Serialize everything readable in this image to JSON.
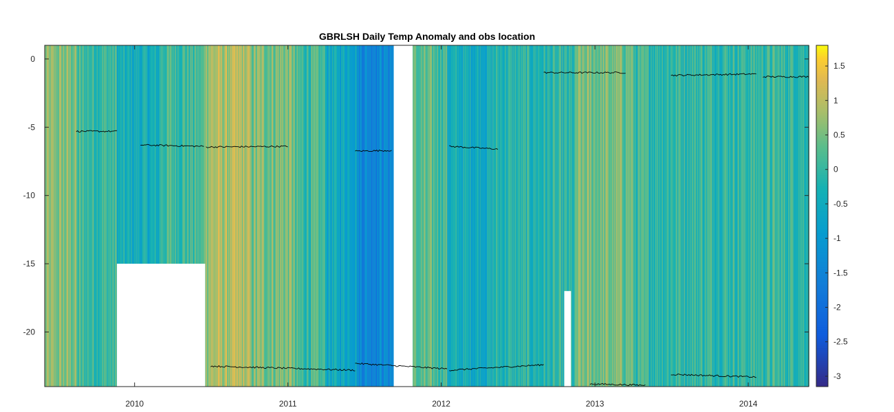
{
  "chart_data": {
    "type": "heatmap",
    "title": "GBRLSH Daily Temp Anomaly and obs location",
    "xlabel": "",
    "ylabel": "",
    "x_range": [
      "2009-06-01",
      "2014-05-25"
    ],
    "ylim": [
      -24,
      1
    ],
    "x_ticks": [
      "2010",
      "2011",
      "2012",
      "2013",
      "2014"
    ],
    "y_ticks": [
      0,
      -5,
      -10,
      -15,
      -20
    ],
    "colorbar": {
      "colormap": "parula",
      "clim": [
        -3.15,
        1.8
      ],
      "ticks": [
        1.5,
        1,
        0.5,
        0,
        -0.5,
        -1,
        -1.5,
        -2,
        -2.5,
        -3
      ],
      "tick_labels": [
        "1.5",
        "1",
        "0.5",
        "0",
        "-0.5",
        "-1",
        "-1.5",
        "-2",
        "-2.5",
        "-3"
      ]
    },
    "grid": false,
    "anomaly_periods": [
      {
        "start": "2009-06-01",
        "end": "2009-08-15",
        "anomaly": 0.55
      },
      {
        "start": "2009-08-15",
        "end": "2009-11-20",
        "anomaly": 0.05
      },
      {
        "start": "2009-11-20",
        "end": "2010-03-01",
        "anomaly": -0.45
      },
      {
        "start": "2010-03-01",
        "end": "2010-06-15",
        "anomaly": 0.1
      },
      {
        "start": "2010-06-15",
        "end": "2010-10-01",
        "anomaly": 0.85
      },
      {
        "start": "2010-10-01",
        "end": "2011-01-15",
        "anomaly": 0.55
      },
      {
        "start": "2011-01-15",
        "end": "2011-04-01",
        "anomaly": 0.05
      },
      {
        "start": "2011-04-01",
        "end": "2011-06-15",
        "anomaly": -0.55
      },
      {
        "start": "2011-06-15",
        "end": "2011-09-10",
        "anomaly": -1.35
      },
      {
        "start": "2011-10-20",
        "end": "2012-01-15",
        "anomaly": 0.2
      },
      {
        "start": "2012-01-15",
        "end": "2012-05-01",
        "anomaly": -0.45
      },
      {
        "start": "2012-05-01",
        "end": "2012-11-15",
        "anomaly": -0.2
      },
      {
        "start": "2012-11-15",
        "end": "2013-04-01",
        "anomaly": 0.45
      },
      {
        "start": "2013-04-01",
        "end": "2014-05-25",
        "anomaly": 0.0
      }
    ],
    "missing_regions": [
      {
        "start": "2009-11-20",
        "end": "2010-06-18",
        "depth_top": -15,
        "depth_bottom": -24
      },
      {
        "start": "2011-09-10",
        "end": "2011-10-25",
        "depth_top": 1,
        "depth_bottom": -24
      },
      {
        "start": "2012-10-20",
        "end": "2012-11-05",
        "depth_top": -17,
        "depth_bottom": -24
      }
    ],
    "obs_location_series": [
      {
        "x": [
          "2009-08-15",
          "2009-11-20"
        ],
        "y": [
          -5.3,
          -5.3
        ]
      },
      {
        "x": [
          "2010-01-15",
          "2010-06-15"
        ],
        "y": [
          -6.3,
          -6.4
        ]
      },
      {
        "x": [
          "2010-06-20",
          "2011-01-01"
        ],
        "y": [
          -6.45,
          -6.4
        ]
      },
      {
        "x": [
          "2011-06-10",
          "2011-09-05"
        ],
        "y": [
          -6.75,
          -6.7
        ]
      },
      {
        "x": [
          "2012-01-20",
          "2012-05-15"
        ],
        "y": [
          -6.4,
          -6.6
        ]
      },
      {
        "x": [
          "2012-09-01",
          "2013-03-15"
        ],
        "y": [
          -1.0,
          -1.0
        ]
      },
      {
        "x": [
          "2013-07-01",
          "2014-01-20"
        ],
        "y": [
          -1.2,
          -1.1
        ]
      },
      {
        "x": [
          "2014-02-05",
          "2014-05-25"
        ],
        "y": [
          -1.3,
          -1.3
        ]
      },
      {
        "x": [
          "2010-07-01",
          "2011-06-10"
        ],
        "y": [
          -22.5,
          -22.8
        ]
      },
      {
        "x": [
          "2011-06-10",
          "2012-01-15"
        ],
        "y": [
          -22.3,
          -22.7
        ]
      },
      {
        "x": [
          "2012-01-20",
          "2012-09-01"
        ],
        "y": [
          -22.8,
          -22.4
        ]
      },
      {
        "x": [
          "2012-12-20",
          "2013-05-01"
        ],
        "y": [
          -23.8,
          -23.9
        ]
      },
      {
        "x": [
          "2013-07-01",
          "2014-01-20"
        ],
        "y": [
          -23.1,
          -23.3
        ]
      }
    ]
  }
}
